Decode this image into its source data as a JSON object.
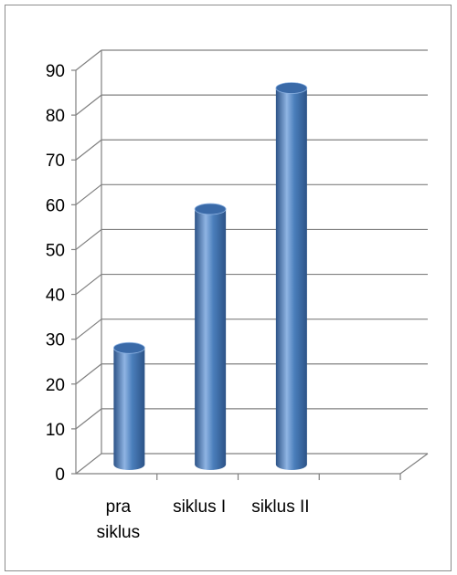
{
  "chart_data": {
    "type": "bar",
    "style": "3d-cylinder",
    "categories": [
      [
        "pra",
        "siklus"
      ],
      [
        "siklus I"
      ],
      [
        "siklus II"
      ],
      [
        ""
      ]
    ],
    "values": [
      26,
      57,
      84,
      null
    ],
    "ylim": [
      0,
      90
    ],
    "yticks": [
      0,
      10,
      20,
      30,
      40,
      50,
      60,
      70,
      80,
      90
    ],
    "title": "",
    "xlabel": "",
    "ylabel": "",
    "legend": "none",
    "grid": true,
    "colors": {
      "bar_face": "#4a7ebb",
      "bar_highlight": "#8fb4e3",
      "bar_shadow": "#2c5387",
      "bar_top": "#3a6aa8",
      "grid": "#808080"
    }
  }
}
